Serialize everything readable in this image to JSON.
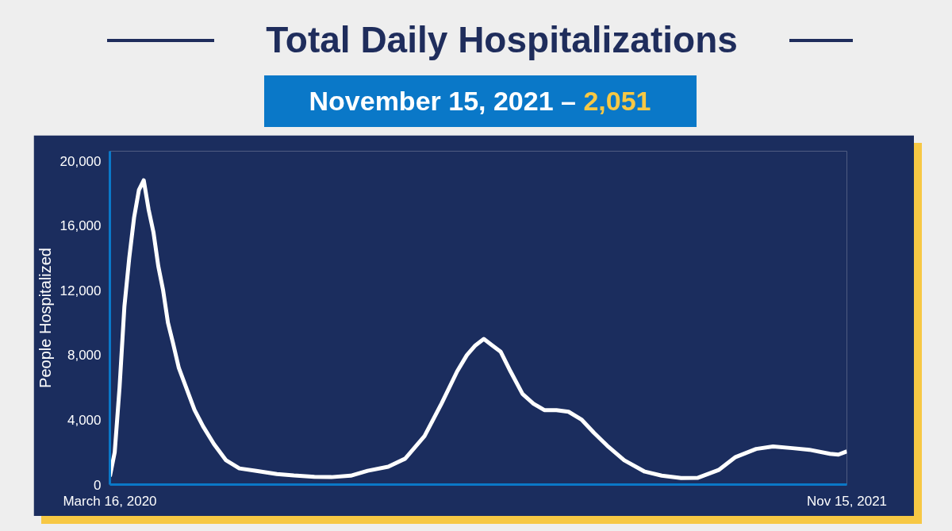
{
  "chart_data": {
    "type": "line",
    "title": "Total Daily Hospitalizations",
    "subtitle": "November 15, 2021 –",
    "annotations": [
      "2,051"
    ],
    "ylabel": "People Hospitalized",
    "x": [
      "2020-03-16",
      "2020-03-20",
      "2020-03-24",
      "2020-03-28",
      "2020-04-01",
      "2020-04-05",
      "2020-04-09",
      "2020-04-13",
      "2020-04-17",
      "2020-04-21",
      "2020-04-25",
      "2020-04-29",
      "2020-05-03",
      "2020-05-07",
      "2020-05-12",
      "2020-05-18",
      "2020-05-25",
      "2020-06-01",
      "2020-06-10",
      "2020-06-20",
      "2020-07-01",
      "2020-07-15",
      "2020-08-01",
      "2020-08-15",
      "2020-09-01",
      "2020-09-15",
      "2020-10-01",
      "2020-10-15",
      "2020-11-01",
      "2020-11-15",
      "2020-12-01",
      "2020-12-15",
      "2020-12-28",
      "2021-01-05",
      "2021-01-12",
      "2021-01-19",
      "2021-01-26",
      "2021-02-02",
      "2021-02-10",
      "2021-02-20",
      "2021-03-01",
      "2021-03-10",
      "2021-03-20",
      "2021-03-30",
      "2021-04-10",
      "2021-04-20",
      "2021-05-01",
      "2021-05-15",
      "2021-06-01",
      "2021-06-15",
      "2021-07-01",
      "2021-07-15",
      "2021-08-01",
      "2021-08-15",
      "2021-09-01",
      "2021-09-15",
      "2021-10-01",
      "2021-10-15",
      "2021-11-01",
      "2021-11-08",
      "2021-11-15"
    ],
    "series": [
      {
        "color": "#ffffff",
        "values": [
          500,
          2000,
          6000,
          11000,
          14000,
          16500,
          18200,
          18800,
          17000,
          15600,
          13500,
          12000,
          10000,
          8800,
          7200,
          6000,
          4600,
          3600,
          2500,
          1500,
          1000,
          850,
          650,
          560,
          480,
          460,
          550,
          850,
          1100,
          1600,
          3000,
          5000,
          7000,
          8000,
          8600,
          9000,
          8600,
          8200,
          7000,
          5600,
          5000,
          4600,
          4600,
          4500,
          4000,
          3200,
          2400,
          1500,
          800,
          550,
          400,
          420,
          900,
          1700,
          2200,
          2350,
          2250,
          2150,
          1900,
          1850,
          2050
        ]
      }
    ],
    "xlim": [
      "2020-03-16",
      "2021-11-15"
    ],
    "xticks": [
      {
        "value": "2020-03-16",
        "label": "March 16, 2020"
      },
      {
        "value": "2021-11-15",
        "label": "Nov 15, 2021"
      }
    ],
    "ylim": [
      0,
      20600
    ],
    "yticks": [
      {
        "value": 0,
        "label": "0"
      },
      {
        "value": 4000,
        "label": "4,000"
      },
      {
        "value": 8000,
        "label": "8,000"
      },
      {
        "value": 12000,
        "label": "12,000"
      },
      {
        "value": 16000,
        "label": "16,000"
      },
      {
        "value": 20000,
        "label": "20,000"
      }
    ],
    "grid": false,
    "line_style": "solid",
    "marker": "none"
  }
}
